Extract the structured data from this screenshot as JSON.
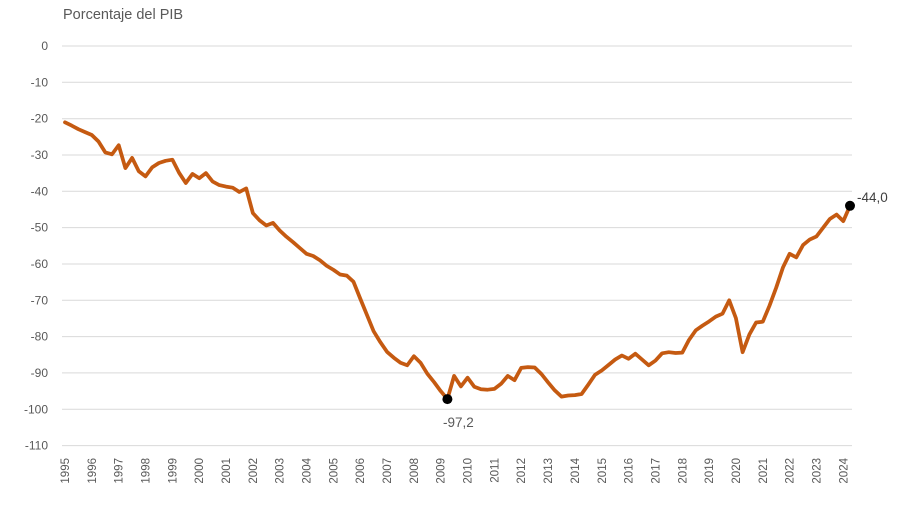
{
  "chart_data": {
    "type": "line",
    "title": "Porcentaje del PIB",
    "x_tick_labels": [
      "1995",
      "1996",
      "1997",
      "1998",
      "1999",
      "2000",
      "2001",
      "2002",
      "2003",
      "2004",
      "2005",
      "2006",
      "2007",
      "2008",
      "2009",
      "2010",
      "2011",
      "2012",
      "2013",
      "2014",
      "2015",
      "2016",
      "2017",
      "2018",
      "2019",
      "2020",
      "2021",
      "2022",
      "2023",
      "2024"
    ],
    "points_per_x_tick": 4,
    "x_frequency": "quarterly",
    "y_tick_labels": [
      "0",
      "-10",
      "-20",
      "-30",
      "-40",
      "-50",
      "-60",
      "-70",
      "-80",
      "-90",
      "-100",
      "-110"
    ],
    "ylim": [
      -110,
      0
    ],
    "grid": "horizontal",
    "legend": "none",
    "series": [
      {
        "values": [
          -21.0,
          -21.9,
          -22.9,
          -23.7,
          -24.5,
          -26.3,
          -29.3,
          -29.8,
          -27.3,
          -33.6,
          -30.8,
          -34.5,
          -35.9,
          -33.4,
          -32.2,
          -31.6,
          -31.3,
          -34.9,
          -37.7,
          -35.2,
          -36.4,
          -35.0,
          -37.3,
          -38.3,
          -38.7,
          -39.0,
          -40.2,
          -39.2,
          -46.0,
          -48.0,
          -49.4,
          -48.7,
          -50.8,
          -52.5,
          -54.0,
          -55.6,
          -57.2,
          -57.8,
          -59.0,
          -60.5,
          -61.6,
          -62.9,
          -63.2,
          -64.9,
          -69.5,
          -74.0,
          -78.5,
          -81.5,
          -84.2,
          -85.8,
          -87.2,
          -87.9,
          -85.4,
          -87.2,
          -90.2,
          -92.5,
          -95.0,
          -97.2,
          -90.8,
          -93.7,
          -91.3,
          -93.8,
          -94.5,
          -94.6,
          -94.4,
          -93.0,
          -90.8,
          -92.0,
          -88.6,
          -88.4,
          -88.5,
          -90.3,
          -92.6,
          -94.8,
          -96.5,
          -96.2,
          -96.1,
          -95.8,
          -93.2,
          -90.5,
          -89.3,
          -87.8,
          -86.3,
          -85.2,
          -86.1,
          -84.7,
          -86.3,
          -87.9,
          -86.6,
          -84.6,
          -84.3,
          -84.5,
          -84.4,
          -80.9,
          -78.3,
          -77.0,
          -75.8,
          -74.5,
          -73.7,
          -70.0,
          -74.9,
          -84.3,
          -79.4,
          -76.1,
          -75.9,
          -71.5,
          -66.5,
          -61.0,
          -57.2,
          -58.2,
          -54.8,
          -53.3,
          -52.4,
          -50.0,
          -47.6,
          -46.4,
          -48.2,
          -44.0
        ]
      }
    ],
    "annotations": [
      {
        "point_index": 57,
        "label": "-97,2",
        "placement": "below",
        "marker": "black-dot"
      },
      {
        "point_index": 117,
        "label": "-44,0",
        "placement": "right",
        "marker": "black-dot"
      }
    ]
  },
  "colors": {
    "line": "#C55A11",
    "grid": "#D9D9D9",
    "axis_text": "#595959",
    "title_text": "#595959",
    "annotation_min": "#595959",
    "annotation_last": "#404040",
    "marker": "#000000",
    "background": "#FFFFFF"
  }
}
